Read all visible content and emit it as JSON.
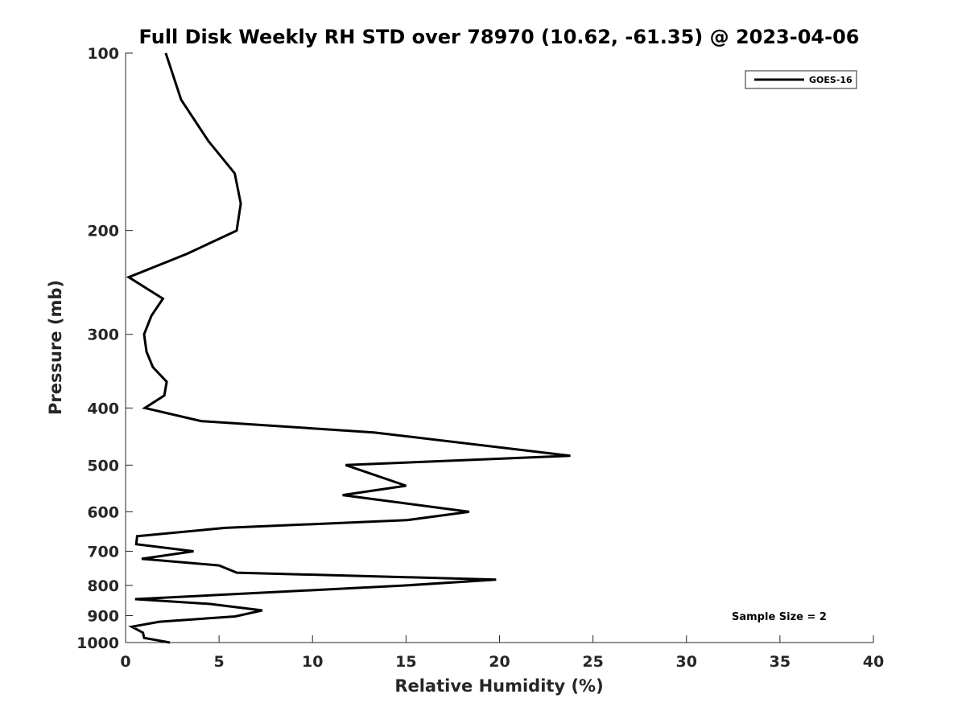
{
  "chart_data": {
    "type": "line",
    "title": "Full Disk Weekly RH STD over 78970 (10.62, -61.35) @ 2023-04-06",
    "xlabel": "Relative Humidity (%)",
    "ylabel": "Pressure (mb)",
    "xlim": [
      0,
      40
    ],
    "ylim": [
      100,
      1000
    ],
    "yscale": "log",
    "y_reversed": true,
    "grid": false,
    "xticks": [
      0,
      5,
      10,
      15,
      20,
      25,
      30,
      35,
      40
    ],
    "xtick_labels": [
      "0",
      "5",
      "10",
      "15",
      "20",
      "25",
      "30",
      "35",
      "40"
    ],
    "yticks": [
      100,
      200,
      300,
      400,
      500,
      600,
      700,
      800,
      900,
      1000
    ],
    "ytick_labels": [
      "100",
      "200",
      "300",
      "400",
      "500",
      "600",
      "700",
      "800",
      "900",
      "1000"
    ],
    "legend": {
      "placement": "top-right",
      "entries": [
        "GOES-16"
      ]
    },
    "annotations": [
      {
        "text": "Sample Size = 2",
        "x": 35,
        "y": 900
      }
    ],
    "series": [
      {
        "name": "GOES-16",
        "color": "#000000",
        "x": [
          2.15,
          2.97,
          4.43,
          5.84,
          6.16,
          5.94,
          3.3,
          0.17,
          2.0,
          1.38,
          0.99,
          1.12,
          1.46,
          2.2,
          2.07,
          1.03,
          4.04,
          13.28,
          23.79,
          11.77,
          15.0,
          11.61,
          18.38,
          15.04,
          5.32,
          0.62,
          0.57,
          3.64,
          0.86,
          5.0,
          5.95,
          19.82,
          14.95,
          0.51,
          4.52,
          7.31,
          5.87,
          1.81,
          0.33,
          0.93,
          0.99,
          2.37
        ],
        "y": [
          100,
          120,
          141,
          160,
          180,
          200,
          219,
          240,
          261,
          279,
          300,
          321,
          341,
          361,
          381,
          400,
          421,
          440,
          482,
          500,
          542,
          562,
          600,
          620,
          639,
          660,
          681,
          700,
          721,
          740,
          761,
          782,
          800,
          844,
          860,
          882,
          903,
          922,
          940,
          962,
          982,
          1000
        ]
      }
    ]
  }
}
